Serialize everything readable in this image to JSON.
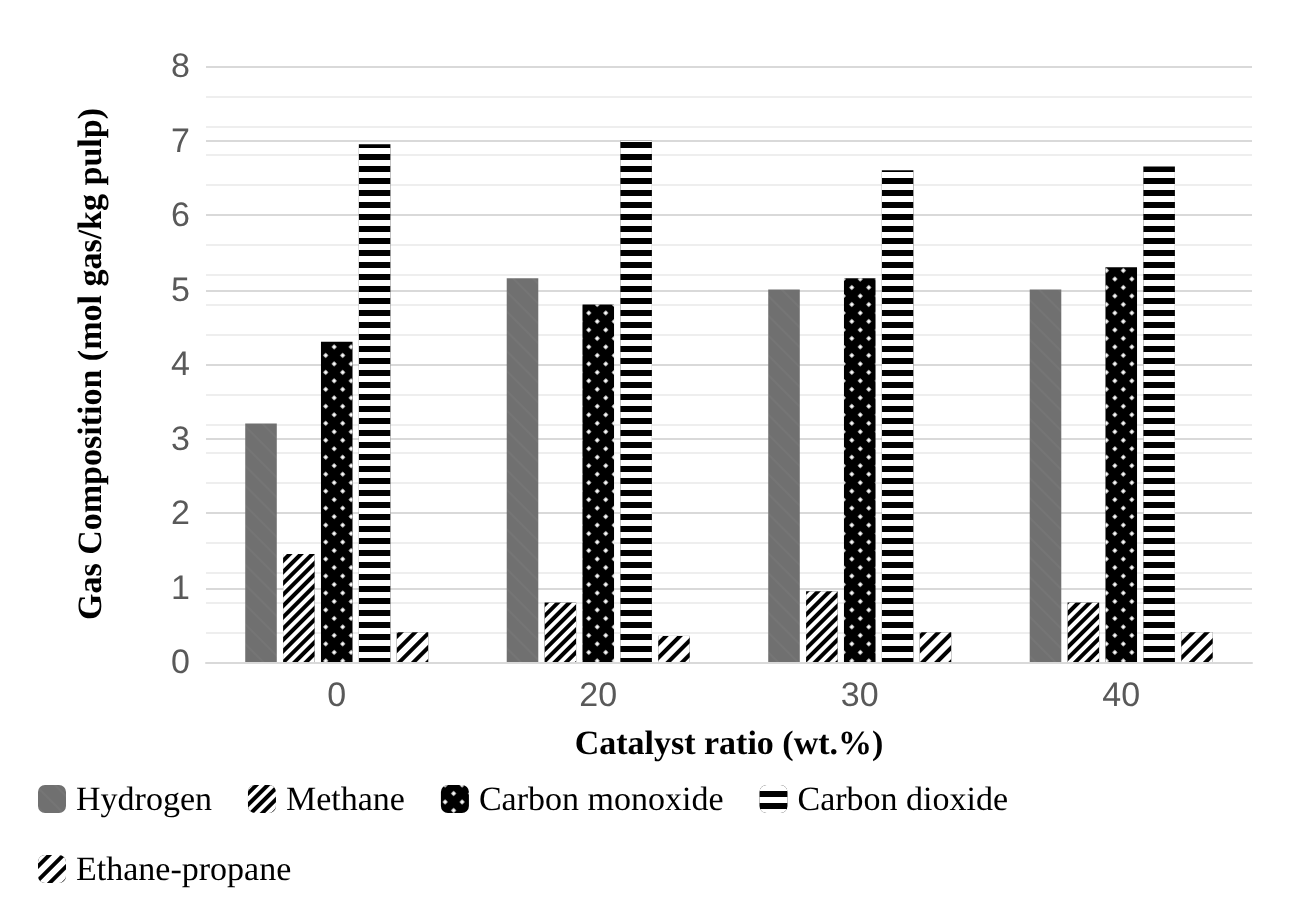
{
  "chart_data": {
    "type": "bar",
    "xlabel": "Catalyst ratio (wt.%)",
    "ylabel": "Gas Composition (mol gas/kg pulp)",
    "categories": [
      "0",
      "20",
      "30",
      "40"
    ],
    "series": [
      {
        "name": "Hydrogen",
        "color": "#707070",
        "values": [
          3.2,
          5.15,
          5.0,
          5.0
        ]
      },
      {
        "name": "Methane",
        "color": "#000000",
        "values": [
          1.45,
          0.8,
          0.95,
          0.8
        ]
      },
      {
        "name": "Carbon monoxide",
        "color": "#000000",
        "values": [
          4.3,
          4.8,
          5.15,
          5.3
        ]
      },
      {
        "name": "Carbon dioxide",
        "color": "#000000",
        "values": [
          6.95,
          7.0,
          6.6,
          6.65
        ]
      },
      {
        "name": "Ethane-propane",
        "color": "#000000",
        "values": [
          0.4,
          0.35,
          0.4,
          0.4
        ]
      }
    ],
    "ylim": [
      0,
      8
    ],
    "yticks": [
      0,
      1,
      2,
      3,
      4,
      5,
      6,
      7,
      8
    ],
    "grid": "y",
    "legend": "bottom"
  }
}
